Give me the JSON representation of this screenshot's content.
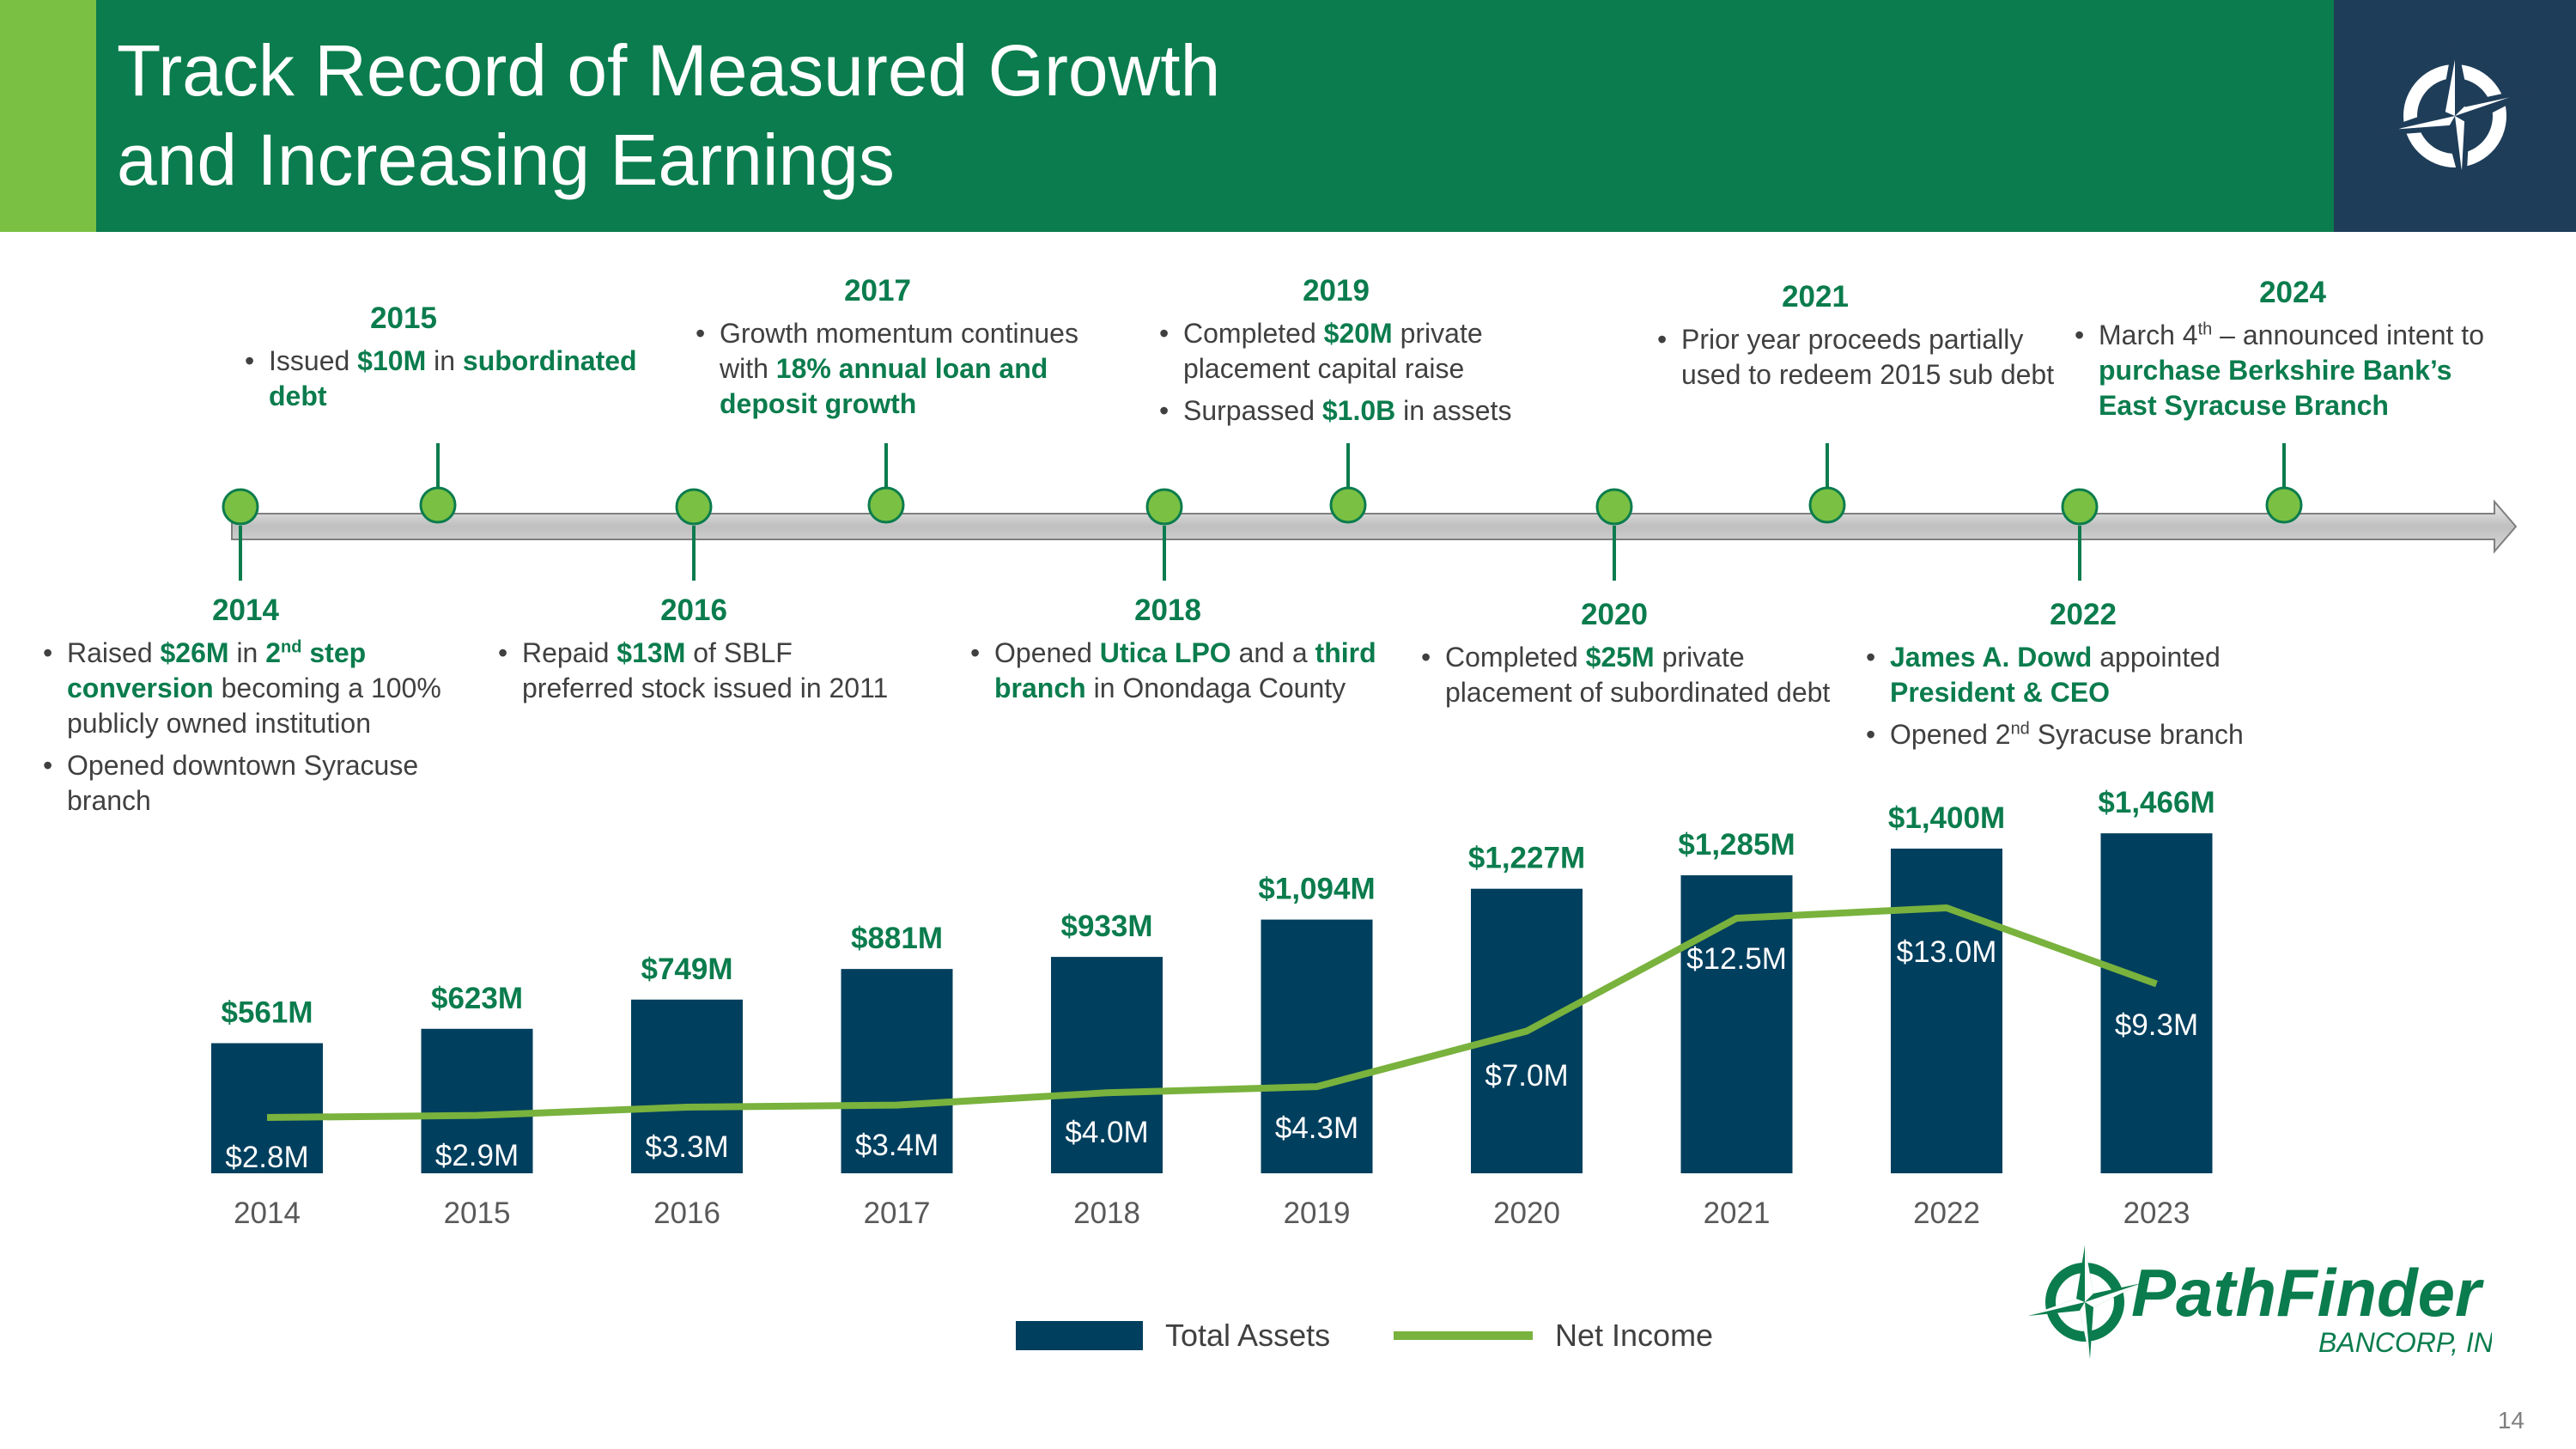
{
  "header": {
    "title_line1": "Track Record of Measured Growth",
    "title_line2": "and Increasing Earnings"
  },
  "timeline": {
    "events": [
      {
        "year": "2014",
        "bullets": [
          {
            "parts": [
              {
                "t": "Raised "
              },
              {
                "t": "$26M",
                "b": true
              },
              {
                "t": " in "
              },
              {
                "t": "2",
                "b": true
              },
              {
                "t": "nd",
                "b": true,
                "sup": true
              },
              {
                "t": " step conversion",
                "b": true
              },
              {
                "t": " becoming a 100% publicly owned institution"
              }
            ]
          },
          {
            "parts": [
              {
                "t": "Opened downtown Syracuse branch"
              }
            ]
          }
        ]
      },
      {
        "year": "2015",
        "bullets": [
          {
            "parts": [
              {
                "t": "Issued "
              },
              {
                "t": "$10M",
                "b": true
              },
              {
                "t": " in "
              },
              {
                "t": "subordinated debt",
                "b": true
              }
            ]
          }
        ]
      },
      {
        "year": "2016",
        "bullets": [
          {
            "parts": [
              {
                "t": "Repaid "
              },
              {
                "t": "$13M",
                "b": true
              },
              {
                "t": " of SBLF preferred stock issued in 2011"
              }
            ]
          }
        ]
      },
      {
        "year": "2017",
        "bullets": [
          {
            "parts": [
              {
                "t": "Growth momentum continues with "
              },
              {
                "t": "18% annual loan and deposit growth",
                "b": true
              }
            ]
          }
        ]
      },
      {
        "year": "2018",
        "bullets": [
          {
            "parts": [
              {
                "t": "Opened "
              },
              {
                "t": "Utica LPO",
                "b": true
              },
              {
                "t": " and a "
              },
              {
                "t": "third branch",
                "b": true
              },
              {
                "t": " in Onondaga County"
              }
            ]
          }
        ]
      },
      {
        "year": "2019",
        "bullets": [
          {
            "parts": [
              {
                "t": "Completed "
              },
              {
                "t": "$20M",
                "b": true
              },
              {
                "t": " private placement capital raise"
              }
            ]
          },
          {
            "parts": [
              {
                "t": "Surpassed "
              },
              {
                "t": "$1.0B",
                "b": true
              },
              {
                "t": " in assets"
              }
            ]
          }
        ]
      },
      {
        "year": "2020",
        "bullets": [
          {
            "parts": [
              {
                "t": "Completed "
              },
              {
                "t": "$25M",
                "b": true
              },
              {
                "t": " private placement of subordinated debt"
              }
            ]
          }
        ]
      },
      {
        "year": "2021",
        "bullets": [
          {
            "parts": [
              {
                "t": "Prior year proceeds partially used to redeem 2015 sub debt"
              }
            ]
          }
        ]
      },
      {
        "year": "2022",
        "bullets": [
          {
            "parts": [
              {
                "t": "James A. Dowd",
                "b": true
              },
              {
                "t": " appointed "
              },
              {
                "t": "President & CEO",
                "b": true
              }
            ]
          },
          {
            "parts": [
              {
                "t": "Opened 2"
              },
              {
                "t": "nd",
                "sup": true
              },
              {
                "t": " Syracuse branch"
              }
            ]
          }
        ]
      },
      {
        "year": "2024",
        "bullets": [
          {
            "parts": [
              {
                "t": "March 4"
              },
              {
                "t": "th",
                "sup": true
              },
              {
                "t": " – announced intent to "
              },
              {
                "t": "purchase Berkshire Bank’s East Syracuse Branch",
                "b": true
              }
            ]
          }
        ]
      }
    ]
  },
  "chart_data": {
    "type": "bar",
    "categories": [
      "2014",
      "2015",
      "2016",
      "2017",
      "2018",
      "2019",
      "2020",
      "2021",
      "2022",
      "2023"
    ],
    "series": [
      {
        "name": "Total Assets",
        "kind": "bar",
        "color": "#003f5e",
        "values": [
          561,
          623,
          749,
          881,
          933,
          1094,
          1227,
          1285,
          1400,
          1466
        ],
        "labels": [
          "$561M",
          "$623M",
          "$749M",
          "$881M",
          "$933M",
          "$1,094M",
          "$1,227M",
          "$1,285M",
          "$1,400M",
          "$1,466M"
        ]
      },
      {
        "name": "Net Income",
        "kind": "line",
        "color": "#79b23d",
        "values": [
          2.8,
          2.9,
          3.3,
          3.4,
          4.0,
          4.3,
          7.0,
          12.5,
          13.0,
          9.3
        ],
        "labels": [
          "$2.8M",
          "$2.9M",
          "$3.3M",
          "$3.4M",
          "$4.0M",
          "$4.3M",
          "$7.0M",
          "$12.5M",
          "$13.0M",
          "$9.3M"
        ]
      }
    ],
    "legend_position": "bottom",
    "grid": false
  },
  "legend": {
    "assets_label": "Total Assets",
    "income_label": "Net Income"
  },
  "footer": {
    "page_number": "14"
  },
  "colors": {
    "header_green": "#0b7c4d",
    "accent_green": "#7ac043",
    "navy": "#1e3d59",
    "bar": "#003f5e",
    "line": "#79b23d",
    "label_green": "#0b7c4d"
  },
  "icons": {
    "header_logo": "compass-star-icon",
    "brand_logo": "pathfinder-logo"
  },
  "brand": {
    "name": "PathFinder",
    "sub": "BANCORP, INC."
  }
}
